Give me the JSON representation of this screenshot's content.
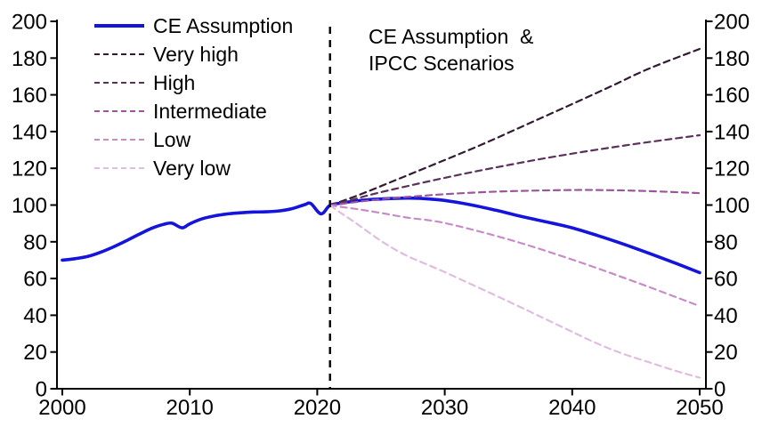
{
  "chart_data": {
    "type": "line",
    "title": "",
    "annotation": {
      "line1": "CE Assumption  &",
      "line2": "IPCC Scenarios"
    },
    "xlim": [
      2000,
      2050
    ],
    "ylim": [
      0,
      200
    ],
    "x_ticks": [
      2000,
      2010,
      2020,
      2030,
      2040,
      2050
    ],
    "y_ticks": [
      0,
      20,
      40,
      60,
      80,
      100,
      120,
      140,
      160,
      180,
      200
    ],
    "y_axis_sides": [
      "left",
      "right"
    ],
    "divider_x": 2021,
    "divider_color": "#000000",
    "axis_color": "#000000",
    "background_color": "#ffffff",
    "legend_position": "top-left",
    "series": [
      {
        "name": "CE Assumption",
        "color": "#1414dd",
        "style": "solid",
        "points": [
          [
            2000,
            70
          ],
          [
            2001,
            70.8
          ],
          [
            2002,
            72
          ],
          [
            2003,
            74.3
          ],
          [
            2004,
            77.2
          ],
          [
            2005,
            80.5
          ],
          [
            2006,
            84
          ],
          [
            2007,
            87.3
          ],
          [
            2008,
            89.6
          ],
          [
            2008.6,
            90.1
          ],
          [
            2009.4,
            87.6
          ],
          [
            2010,
            89.8
          ],
          [
            2011,
            92.6
          ],
          [
            2012,
            94.2
          ],
          [
            2013,
            95.2
          ],
          [
            2014,
            95.8
          ],
          [
            2015,
            96.2
          ],
          [
            2016,
            96.3
          ],
          [
            2017,
            96.8
          ],
          [
            2018,
            98
          ],
          [
            2019,
            100.2
          ],
          [
            2019.5,
            100.8
          ],
          [
            2020.3,
            95.2
          ],
          [
            2021,
            99.8
          ],
          [
            2022,
            101.2
          ],
          [
            2023,
            102.2
          ],
          [
            2024,
            102.9
          ],
          [
            2025,
            103.3
          ],
          [
            2026,
            103.6
          ],
          [
            2027,
            103.8
          ],
          [
            2028,
            103.7
          ],
          [
            2029,
            103.2
          ],
          [
            2030,
            102.5
          ],
          [
            2032,
            100.2
          ],
          [
            2034,
            97.2
          ],
          [
            2036,
            93.8
          ],
          [
            2038,
            90.8
          ],
          [
            2040,
            87.6
          ],
          [
            2042,
            83.4
          ],
          [
            2044,
            78.8
          ],
          [
            2046,
            73.8
          ],
          [
            2048,
            68.6
          ],
          [
            2050,
            63.2
          ]
        ]
      },
      {
        "name": "Very high",
        "color": "#321a32",
        "style": "dashed",
        "points": [
          [
            2021,
            99.8
          ],
          [
            2023,
            104.8
          ],
          [
            2025,
            110.3
          ],
          [
            2027,
            116
          ],
          [
            2030,
            124.5
          ],
          [
            2033,
            133.2
          ],
          [
            2036,
            142.5
          ],
          [
            2040,
            155
          ],
          [
            2043,
            164.5
          ],
          [
            2046,
            174.2
          ],
          [
            2050,
            185
          ]
        ]
      },
      {
        "name": "High",
        "color": "#5c305c",
        "style": "dashed",
        "points": [
          [
            2021,
            99.8
          ],
          [
            2023,
            103.4
          ],
          [
            2025,
            107
          ],
          [
            2030,
            114.8
          ],
          [
            2035,
            121.8
          ],
          [
            2040,
            128
          ],
          [
            2045,
            133.3
          ],
          [
            2050,
            138
          ]
        ]
      },
      {
        "name": "Intermediate",
        "color": "#9e539e",
        "style": "dashed",
        "points": [
          [
            2021,
            99.8
          ],
          [
            2023,
            101.6
          ],
          [
            2025,
            103.2
          ],
          [
            2027,
            104.4
          ],
          [
            2030,
            105.9
          ],
          [
            2033,
            107
          ],
          [
            2036,
            107.7
          ],
          [
            2040,
            108.2
          ],
          [
            2043,
            108.1
          ],
          [
            2046,
            107.6
          ],
          [
            2050,
            106.5
          ]
        ]
      },
      {
        "name": "Low",
        "color": "#c78cc7",
        "style": "dashed",
        "points": [
          [
            2021,
            99.8
          ],
          [
            2023,
            97.9
          ],
          [
            2025,
            95.7
          ],
          [
            2027,
            93.2
          ],
          [
            2030,
            90.2
          ],
          [
            2035,
            81.3
          ],
          [
            2040,
            70.3
          ],
          [
            2045,
            58
          ],
          [
            2050,
            45
          ]
        ]
      },
      {
        "name": "Very low",
        "color": "#e0bde0",
        "style": "dashed",
        "points": [
          [
            2021,
            99.8
          ],
          [
            2022,
            95
          ],
          [
            2023,
            90.3
          ],
          [
            2025,
            80.5
          ],
          [
            2027,
            72.5
          ],
          [
            2030,
            63.5
          ],
          [
            2035,
            47.5
          ],
          [
            2040,
            31
          ],
          [
            2042,
            24.5
          ],
          [
            2044,
            19
          ],
          [
            2046,
            14.5
          ],
          [
            2048,
            10
          ],
          [
            2050,
            6
          ]
        ]
      }
    ]
  }
}
